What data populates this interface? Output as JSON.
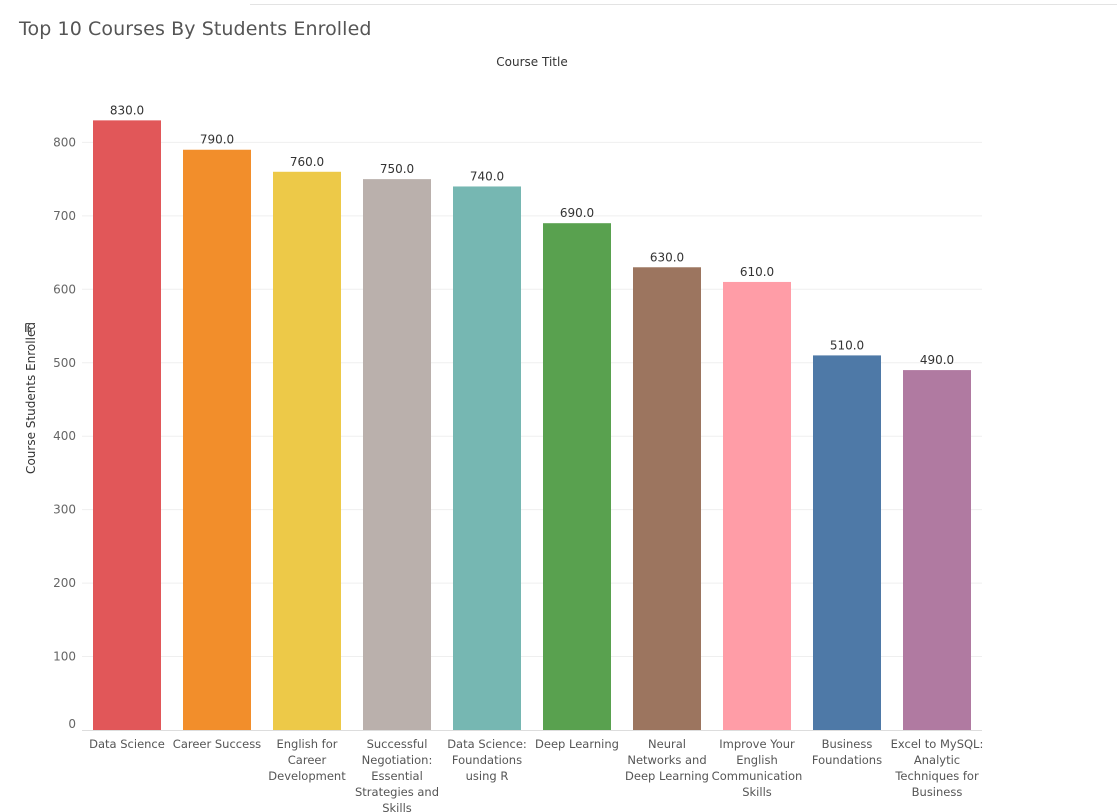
{
  "chart_data": {
    "type": "bar",
    "title": "Top 10 Courses By Students Enrolled",
    "xlabel": "Course Title",
    "ylabel": "Course Students Enrolled",
    "ylim": [
      0,
      850
    ],
    "yticks": [
      0,
      100,
      200,
      300,
      400,
      500,
      600,
      700,
      800
    ],
    "grid": true,
    "categories": [
      [
        "Data Science"
      ],
      [
        "Career Success"
      ],
      [
        "English for",
        "Career",
        "Development"
      ],
      [
        "Successful",
        "Negotiation:",
        "Essential",
        "Strategies and",
        "Skills"
      ],
      [
        "Data Science:",
        "Foundations",
        "using R"
      ],
      [
        "Deep Learning"
      ],
      [
        "Neural",
        "Networks and",
        "Deep Learning"
      ],
      [
        "Improve Your",
        "English",
        "Communication",
        "Skills"
      ],
      [
        "Business",
        "Foundations"
      ],
      [
        "Excel to MySQL:",
        "Analytic",
        "Techniques for",
        "Business"
      ]
    ],
    "values": [
      830,
      790,
      760,
      750,
      740,
      690,
      630,
      610,
      510,
      490
    ],
    "value_labels": [
      "830.0",
      "790.0",
      "760.0",
      "750.0",
      "740.0",
      "690.0",
      "630.0",
      "610.0",
      "510.0",
      "490.0"
    ],
    "colors": [
      "#e15759",
      "#f28e2b",
      "#edc948",
      "#bab0ac",
      "#76b7b2",
      "#59a14f",
      "#9c755f",
      "#ff9da7",
      "#4e79a7",
      "#b07aa1"
    ]
  }
}
